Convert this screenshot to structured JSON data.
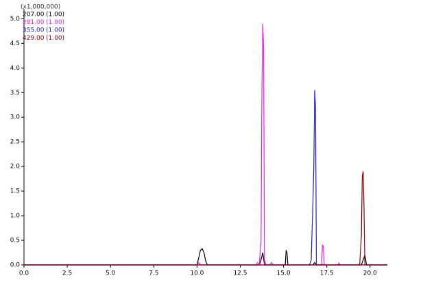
{
  "chart_data": {
    "type": "line",
    "multiplier_label": "(x1,000,000)",
    "xlim": [
      0,
      21
    ],
    "ylim": [
      0,
      5.2
    ],
    "xticks": [
      {
        "value": 0,
        "label": "0.0"
      },
      {
        "value": 2.5,
        "label": "2.5"
      },
      {
        "value": 5,
        "label": "5.0"
      },
      {
        "value": 7.5,
        "label": "7.5"
      },
      {
        "value": 10,
        "label": "10.0"
      },
      {
        "value": 12.5,
        "label": "12.5"
      },
      {
        "value": 15,
        "label": "15.0"
      },
      {
        "value": 17.5,
        "label": "17.5"
      },
      {
        "value": 20,
        "label": "20.0"
      }
    ],
    "yticks": [
      {
        "value": 0,
        "label": "0.0"
      },
      {
        "value": 0.5,
        "label": "0.5"
      },
      {
        "value": 1,
        "label": "1.0"
      },
      {
        "value": 1.5,
        "label": "1.5"
      },
      {
        "value": 2,
        "label": "2.0"
      },
      {
        "value": 2.5,
        "label": "2.5"
      },
      {
        "value": 3,
        "label": "3.0"
      },
      {
        "value": 3.5,
        "label": "3.5"
      },
      {
        "value": 4,
        "label": "4.0"
      },
      {
        "value": 4.5,
        "label": "4.5"
      },
      {
        "value": 5,
        "label": "5.0"
      }
    ],
    "grid": false,
    "series": [
      {
        "name": "207.00",
        "scale_label": "(1.00)",
        "color": "#000000",
        "x": [
          0,
          10.0,
          10.1,
          10.2,
          10.3,
          10.4,
          10.5,
          10.6,
          13.6,
          13.7,
          13.8,
          13.9,
          15.1,
          15.15,
          15.2,
          15.25,
          16.7,
          16.8,
          16.9,
          19.5,
          19.6,
          19.7,
          19.8,
          21
        ],
        "values": [
          0,
          0,
          0.15,
          0.3,
          0.33,
          0.25,
          0.08,
          0,
          0,
          0.1,
          0.25,
          0,
          0,
          0.3,
          0.25,
          0,
          0,
          0.05,
          0,
          0,
          0.1,
          0.2,
          0,
          0
        ]
      },
      {
        "name": "281.00",
        "scale_label": "(1.00)",
        "color": "#e020e0",
        "x": [
          0,
          10.0,
          10.1,
          10.2,
          13.4,
          13.5,
          13.6,
          13.7,
          13.75,
          13.8,
          13.85,
          13.9,
          14.0,
          14.2,
          14.3,
          14.4,
          17.2,
          17.25,
          17.3,
          17.35,
          18.15,
          18.2,
          18.25,
          21
        ],
        "values": [
          0,
          0,
          0.05,
          0,
          0,
          0.05,
          0.02,
          0.5,
          3.5,
          4.9,
          4.4,
          0.1,
          0,
          0,
          0.05,
          0,
          0,
          0.4,
          0.38,
          0,
          0,
          0.04,
          0,
          0
        ]
      },
      {
        "name": "355.00",
        "scale_label": "(1.00)",
        "color": "#2020c0",
        "x": [
          0,
          16.5,
          16.6,
          16.7,
          16.75,
          16.8,
          16.85,
          16.9,
          21
        ],
        "values": [
          0,
          0,
          0.1,
          1.3,
          2.0,
          3.55,
          3.2,
          0,
          0
        ]
      },
      {
        "name": "429.00",
        "scale_label": "(1.00)",
        "color": "#800000",
        "x": [
          0,
          19.4,
          19.5,
          19.55,
          19.6,
          19.65,
          19.7,
          21
        ],
        "values": [
          0,
          0,
          0.6,
          1.8,
          1.9,
          1.2,
          0,
          0
        ]
      }
    ]
  }
}
